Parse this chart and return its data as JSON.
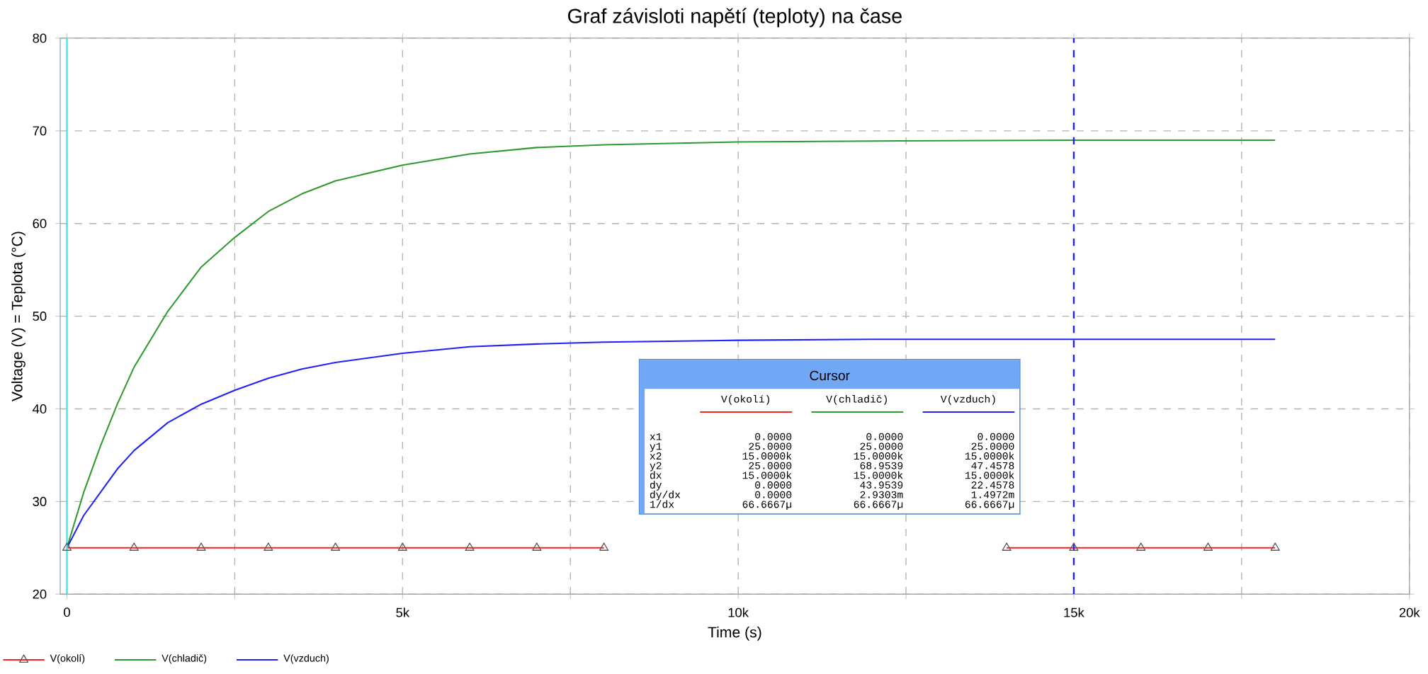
{
  "chart_data": {
    "type": "line",
    "title": "Graf závisloti napětí (teploty) na čase",
    "xlabel": "Time (s)",
    "ylabel": "Voltage (V) = Teplota (°C)",
    "xlim": [
      -100,
      20000
    ],
    "ylim": [
      20,
      80
    ],
    "xticks": [
      {
        "value": 0,
        "label": "0"
      },
      {
        "value": 2500,
        "label": null
      },
      {
        "value": 5000,
        "label": "5k"
      },
      {
        "value": 7500,
        "label": null
      },
      {
        "value": 10000,
        "label": "10k"
      },
      {
        "value": 12500,
        "label": null
      },
      {
        "value": 15000,
        "label": "15k"
      },
      {
        "value": 17500,
        "label": null
      },
      {
        "value": 20000,
        "label": "20k"
      }
    ],
    "yticks": [
      20,
      30,
      40,
      50,
      60,
      70,
      80
    ],
    "grid": true,
    "legend": "bottom left",
    "series": [
      {
        "name": "V(okolí)",
        "color": "#ff2020",
        "marker": "triangle",
        "x": [
          0,
          1000,
          2000,
          3000,
          4000,
          5000,
          6000,
          7000,
          8000,
          9000,
          10000,
          11000,
          12000,
          13000,
          14000,
          15000,
          16000,
          17000,
          18000
        ],
        "values": [
          25,
          25,
          25,
          25,
          25,
          25,
          25,
          25,
          25,
          null,
          null,
          null,
          null,
          null,
          25,
          25,
          25,
          25,
          25
        ]
      },
      {
        "name": "V(chladič)",
        "color": "#2e9a2e",
        "x": [
          0,
          250,
          500,
          750,
          1000,
          1500,
          2000,
          2500,
          3000,
          3500,
          4000,
          5000,
          6000,
          7000,
          8000,
          10000,
          12000,
          15000,
          18000
        ],
        "values": [
          25,
          31,
          36,
          40.5,
          44.5,
          50.5,
          55.3,
          58.5,
          61.3,
          63.2,
          64.6,
          66.3,
          67.5,
          68.2,
          68.5,
          68.8,
          68.9,
          69,
          69
        ]
      },
      {
        "name": "V(vzduch)",
        "color": "#2020ff",
        "x": [
          0,
          250,
          500,
          750,
          1000,
          1500,
          2000,
          2500,
          3000,
          3500,
          4000,
          5000,
          6000,
          7000,
          8000,
          10000,
          12000,
          15000,
          18000
        ],
        "values": [
          25,
          28.5,
          31,
          33.5,
          35.5,
          38.5,
          40.5,
          42,
          43.3,
          44.3,
          45,
          46,
          46.7,
          47,
          47.2,
          47.4,
          47.5,
          47.5,
          47.5
        ]
      }
    ],
    "ref_lines": [
      {
        "axis": "x",
        "value": 0,
        "color": "#40e8e8",
        "line_style": "solid"
      },
      {
        "axis": "x",
        "value": 15000,
        "color": "#2020ff",
        "line_style": "dashed"
      }
    ],
    "annotations": [
      "Cursor",
      "V(okolí)",
      "V(chladič)",
      "V(vzduch)",
      "x1",
      "0.0000",
      "0.0000",
      "0.0000",
      "y1",
      "25.0000",
      "25.0000",
      "25.0000",
      "x2",
      "15.0000k",
      "15.0000k",
      "15.0000k",
      "y2",
      "25.0000",
      "68.9539",
      "47.4578",
      "dx",
      "15.0000k",
      "15.0000k",
      "15.0000k",
      "dy",
      "0.0000",
      "43.9539",
      "22.4578",
      "dy/dx",
      "0.0000",
      "2.9303m",
      "1.4972m",
      "1/dx",
      "66.6667µ",
      "66.6667µ",
      "66.6667µ"
    ]
  }
}
